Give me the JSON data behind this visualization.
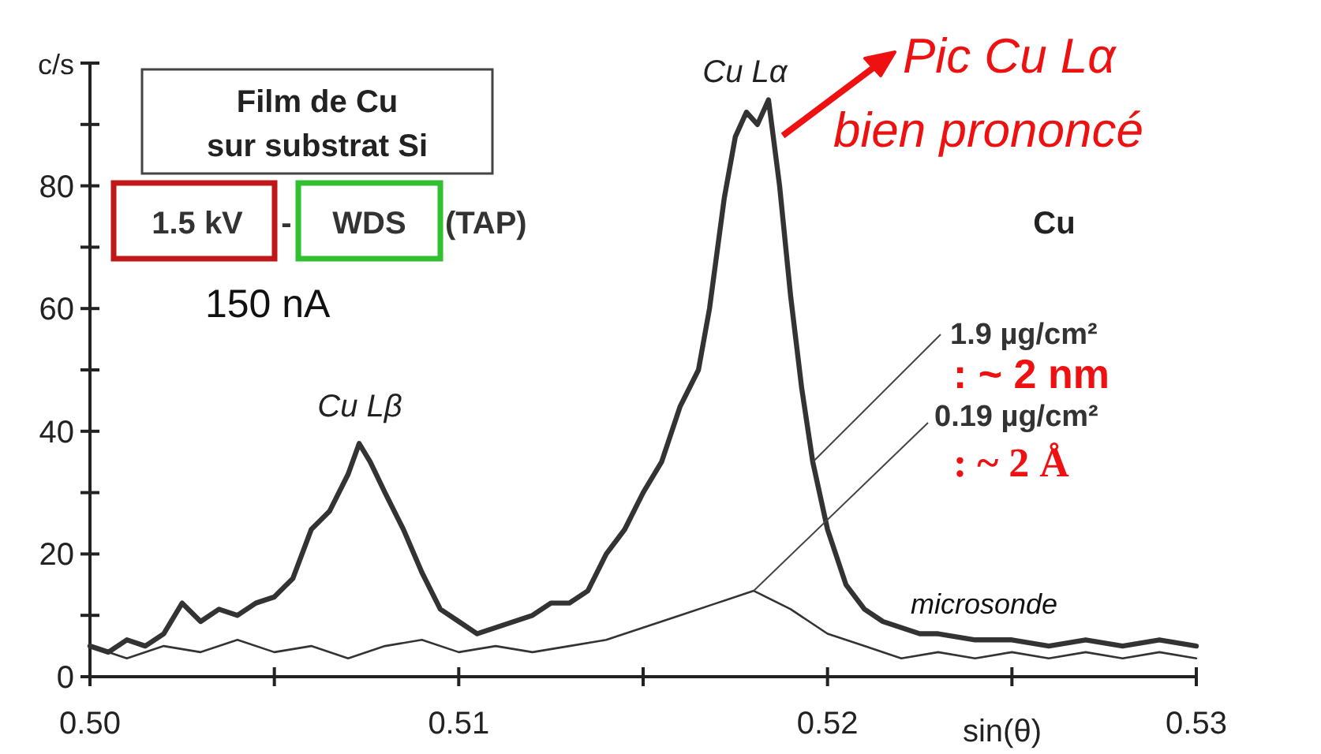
{
  "chart_data": {
    "type": "line",
    "title": "Film de Cu\nsur substrat Si",
    "xlabel": "sin(θ)",
    "ylabel": "c/s",
    "xlim": [
      0.5,
      0.53
    ],
    "ylim": [
      0,
      100
    ],
    "xticks": [
      {
        "value": 0.5,
        "label": "0.50"
      },
      {
        "value": 0.505,
        "label": null
      },
      0.51,
      {
        "value": 0.515,
        "label": null
      },
      0.52,
      {
        "value": 0.525,
        "label": null
      },
      0.53
    ],
    "yticks": [
      0,
      {
        "value": 10,
        "label": null
      },
      20,
      {
        "value": 30,
        "label": null
      },
      40,
      {
        "value": 50,
        "label": null
      },
      60,
      {
        "value": 70,
        "label": null
      },
      80,
      {
        "value": 90,
        "label": null
      },
      {
        "value": 100,
        "label": null
      }
    ],
    "marker": "none",
    "line_style": "solid",
    "series": [
      {
        "color": "#333333",
        "x": [
          0.5,
          0.5005,
          0.501,
          0.5015,
          0.502,
          0.5025,
          0.503,
          0.5035,
          0.504,
          0.5045,
          0.505,
          0.5055,
          0.506,
          0.5065,
          0.507,
          0.5073,
          0.5076,
          0.508,
          0.5085,
          0.509,
          0.5095,
          0.51,
          0.5105,
          0.511,
          0.5115,
          0.512,
          0.5125,
          0.513,
          0.5135,
          0.514,
          0.5145,
          0.515,
          0.5155,
          0.516,
          0.5165,
          0.5168,
          0.5172,
          0.5175,
          0.5178,
          0.5181,
          0.5184,
          0.5187,
          0.519,
          0.5193,
          0.5196,
          0.52,
          0.5205,
          0.521,
          0.5215,
          0.522,
          0.5225,
          0.523,
          0.524,
          0.525,
          0.526,
          0.527,
          0.528,
          0.529,
          0.53
        ],
        "values": [
          5,
          4,
          6,
          5,
          7,
          12,
          9,
          11,
          10,
          12,
          13,
          16,
          24,
          27,
          33,
          38,
          35,
          30,
          24,
          17,
          11,
          9,
          7,
          8,
          9,
          10,
          12,
          12,
          14,
          20,
          24,
          30,
          35,
          44,
          50,
          60,
          78,
          88,
          92,
          90,
          94,
          80,
          62,
          47,
          35,
          24,
          15,
          11,
          9,
          8,
          7,
          7,
          6,
          6,
          5,
          6,
          5,
          6,
          5
        ]
      },
      {
        "color": "#333333",
        "x": [
          0.5,
          0.501,
          0.502,
          0.503,
          0.504,
          0.505,
          0.506,
          0.507,
          0.508,
          0.509,
          0.51,
          0.511,
          0.512,
          0.513,
          0.514,
          0.515,
          0.516,
          0.517,
          0.518,
          0.519,
          0.52,
          0.521,
          0.522,
          0.523,
          0.524,
          0.525,
          0.526,
          0.527,
          0.528,
          0.529,
          0.53
        ],
        "values": [
          5,
          3,
          5,
          4,
          6,
          4,
          5,
          3,
          5,
          6,
          4,
          5,
          4,
          5,
          6,
          8,
          10,
          12,
          14,
          11,
          7,
          5,
          3,
          4,
          3,
          4,
          3,
          4,
          3,
          4,
          3
        ]
      }
    ],
    "annotations": [
      "Cu Lα",
      "Cu Lβ",
      "Pic Cu Lα\nbien prononcé",
      "1.5 kV",
      "-",
      "WDS",
      "(TAP)",
      "150 nA",
      "Cu",
      ": ~ 2 nm",
      ": ~ 2 Å",
      "microsonde",
      {
        "text": "1.9 µg/cm²",
        "x": 0.5196,
        "y": 35
      },
      {
        "text": "0.19 µg/cm²",
        "x": 0.518,
        "y": 14
      }
    ]
  }
}
